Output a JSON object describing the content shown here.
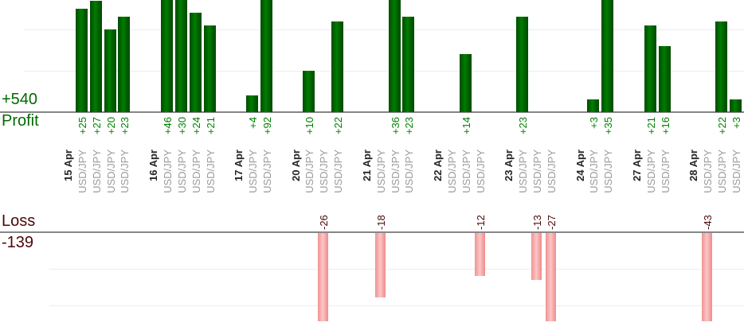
{
  "profit_panel": {
    "axis_label": "Profit",
    "total_label": "+540",
    "total": 540
  },
  "loss_panel": {
    "axis_label": "Loss",
    "total_label": "-139",
    "total": -139
  },
  "colors": {
    "profit_text": "#008000",
    "profit_axis_text": "#006b00",
    "profit_bar_dark": "#004c00",
    "profit_bar_light": "#007d00",
    "loss_text": "#4c0707",
    "loss_bar_edge": "#ef9393",
    "loss_bar_light": "#fdc6c6",
    "date_text": "#262626",
    "symbol_text": "#9a9a9a",
    "axis_line": "#868686",
    "gridline": "#ededed"
  },
  "days": [
    {
      "date": "15 Apr",
      "trades": [
        {
          "symbol": "USD/JPY",
          "value": 25,
          "label": "+25"
        },
        {
          "symbol": "USD/JPY",
          "value": 27,
          "label": "+27"
        },
        {
          "symbol": "USD/JPY",
          "value": 20,
          "label": "+20"
        },
        {
          "symbol": "USD/JPY",
          "value": 23,
          "label": "+23"
        }
      ]
    },
    {
      "date": "16 Apr",
      "trades": [
        {
          "symbol": "USD/JPY",
          "value": 46,
          "label": "+46"
        },
        {
          "symbol": "USD/JPY",
          "value": 30,
          "label": "+30"
        },
        {
          "symbol": "USD/JPY",
          "value": 24,
          "label": "+24"
        },
        {
          "symbol": "USD/JPY",
          "value": 21,
          "label": "+21"
        }
      ]
    },
    {
      "date": "17 Apr",
      "trades": [
        {
          "symbol": "USD/JPY",
          "value": 4,
          "label": "+4"
        },
        {
          "symbol": "USD/JPY",
          "value": 92,
          "label": "+92"
        }
      ]
    },
    {
      "date": "20 Apr",
      "trades": [
        {
          "symbol": "USD/JPY",
          "value": 10,
          "label": "+10"
        },
        {
          "symbol": "USD/JPY",
          "value": -26,
          "label": "-26"
        },
        {
          "symbol": "USD/JPY",
          "value": 22,
          "label": "+22"
        }
      ]
    },
    {
      "date": "21 Apr",
      "trades": [
        {
          "symbol": "USD/JPY",
          "value": -18,
          "label": "-18"
        },
        {
          "symbol": "USD/JPY",
          "value": 36,
          "label": "+36"
        },
        {
          "symbol": "USD/JPY",
          "value": 23,
          "label": "+23"
        }
      ]
    },
    {
      "date": "22 Apr",
      "trades": [
        {
          "symbol": "USD/JPY",
          "value": 0,
          "label": ""
        },
        {
          "symbol": "USD/JPY",
          "value": 14,
          "label": "+14"
        },
        {
          "symbol": "USD/JPY",
          "value": -12,
          "label": "-12"
        }
      ]
    },
    {
      "date": "23 Apr",
      "trades": [
        {
          "symbol": "USD/JPY",
          "value": 23,
          "label": "+23"
        },
        {
          "symbol": "USD/JPY",
          "value": -13,
          "label": "-13"
        },
        {
          "symbol": "USD/JPY",
          "value": -27,
          "label": "-27"
        }
      ]
    },
    {
      "date": "24 Apr",
      "trades": [
        {
          "symbol": "USD/JPY",
          "value": 3,
          "label": "+3"
        },
        {
          "symbol": "USD/JPY",
          "value": 35,
          "label": "+35"
        }
      ]
    },
    {
      "date": "27 Apr",
      "trades": [
        {
          "symbol": "USD/JPY",
          "value": 21,
          "label": "+21"
        },
        {
          "symbol": "USD/JPY",
          "value": 16,
          "label": "+16"
        }
      ]
    },
    {
      "date": "28 Apr",
      "trades": [
        {
          "symbol": "USD/JPY",
          "value": -43,
          "label": "-43"
        },
        {
          "symbol": "USD/JPY",
          "value": 22,
          "label": "+22"
        },
        {
          "symbol": "USD/JPY",
          "value": 3,
          "label": "+3"
        }
      ]
    }
  ],
  "chart_data": {
    "type": "bar",
    "title": "",
    "orientation": "vertical",
    "instrument": "USD/JPY",
    "categories": [
      "15 Apr",
      "16 Apr",
      "17 Apr",
      "20 Apr",
      "21 Apr",
      "22 Apr",
      "23 Apr",
      "24 Apr",
      "27 Apr",
      "28 Apr"
    ],
    "values_by_day": [
      [
        25,
        27,
        20,
        23
      ],
      [
        46,
        30,
        24,
        21
      ],
      [
        4,
        92
      ],
      [
        10,
        -26,
        22
      ],
      [
        -18,
        36,
        23
      ],
      [
        0,
        14,
        -12
      ],
      [
        23,
        -13,
        -27
      ],
      [
        3,
        35
      ],
      [
        21,
        16
      ],
      [
        -43,
        22,
        3
      ]
    ],
    "panels": [
      {
        "name": "Profit",
        "total": 540,
        "total_label": "+540",
        "bar_color": "#006600",
        "gridline_step": 10,
        "grid": true,
        "values": [
          25,
          27,
          20,
          23,
          46,
          30,
          24,
          21,
          4,
          92,
          10,
          22,
          36,
          23,
          14,
          23,
          3,
          35,
          21,
          16,
          22,
          3
        ]
      },
      {
        "name": "Loss",
        "total": -139,
        "total_label": "-139",
        "bar_color": "#f8aaaa",
        "gridline_step": 10,
        "grid": true,
        "values": [
          -26,
          -18,
          -12,
          -13,
          -27,
          -43
        ]
      }
    ],
    "legend": "none",
    "x_tick_labels_rotated_90": true
  }
}
